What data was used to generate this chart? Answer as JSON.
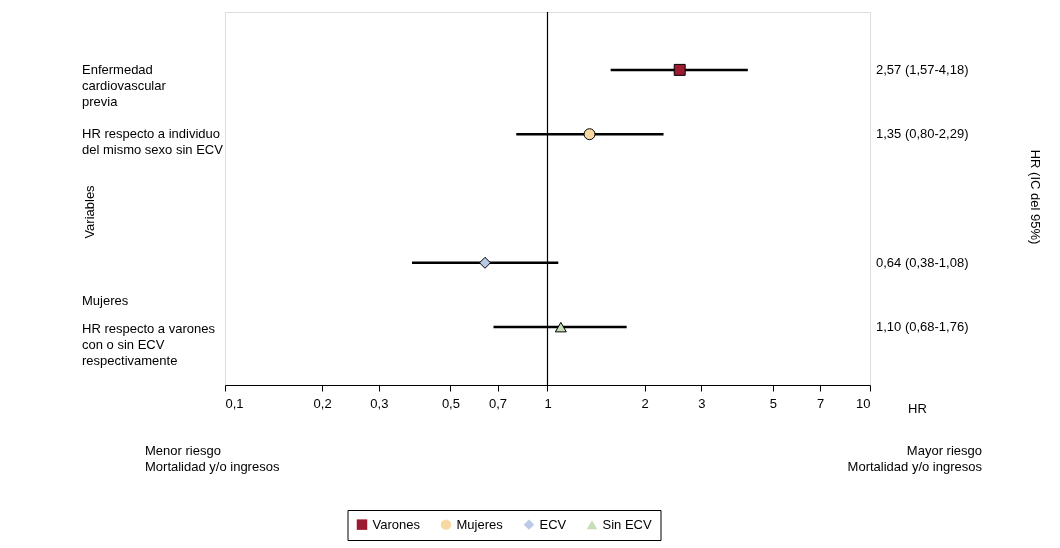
{
  "chart_data": {
    "type": "scatter",
    "orientation": "horizontal",
    "categories": [
      null,
      null,
      null,
      null,
      null
    ],
    "xlabel": "HR",
    "log": "x",
    "xlim": [
      0.1,
      10
    ],
    "xticks": [
      {
        "value": 0.1,
        "label": "0,1"
      },
      {
        "value": 0.2,
        "label": "0,2"
      },
      {
        "value": 0.3,
        "label": "0,3"
      },
      {
        "value": 0.5,
        "label": "0,5"
      },
      {
        "value": 0.7,
        "label": "0,7"
      },
      1,
      2,
      3,
      5,
      7,
      10
    ],
    "grid": false,
    "legend": "bottom",
    "ref_lines": [
      {
        "axis": "x",
        "value": 1,
        "color": "#000000"
      }
    ],
    "series": [
      {
        "name": "Varones",
        "color": "#9b1b30",
        "marker": "square",
        "values": [
          2.57,
          null,
          null,
          null,
          null
        ],
        "errors": [
          [
            1.57,
            4.18
          ],
          null,
          null,
          null,
          null
        ]
      },
      {
        "name": "Mujeres",
        "color": "#f7d9a3",
        "marker": "circle",
        "values": [
          null,
          1.35,
          null,
          null,
          null
        ],
        "errors": [
          null,
          [
            0.8,
            2.29
          ],
          null,
          null,
          null
        ]
      },
      {
        "name": "ECV",
        "color": "#b9cbe4",
        "marker": "diamond",
        "values": [
          null,
          null,
          null,
          0.64,
          null
        ],
        "errors": [
          null,
          null,
          null,
          [
            0.38,
            1.08
          ],
          null
        ]
      },
      {
        "name": "Sin ECV",
        "color": "#c6ddb9",
        "marker": "triangle",
        "values": [
          null,
          null,
          null,
          null,
          1.1
        ],
        "errors": [
          null,
          null,
          null,
          null,
          [
            0.68,
            1.76
          ]
        ]
      }
    ],
    "annotations": [
      "Enfermedad\ncardiovascular\nprevia",
      "HR respecto a individuo\ndel mismo sexo sin ECV",
      "Mujeres",
      "HR respecto a varones\ncon o sin ECV\nrespectivamente",
      "Menor riesgo\nMortalidad y/o ingresos",
      "Mayor riesgo\nMortalidad y/o ingresos",
      "Variables",
      "HR (IC del 95%)",
      "2,57 (1,57-4,18)",
      "1,35 (0,80-2,29)",
      "0,64 (0,38-1,08)",
      "1,10 (0,68-1,76)"
    ]
  }
}
